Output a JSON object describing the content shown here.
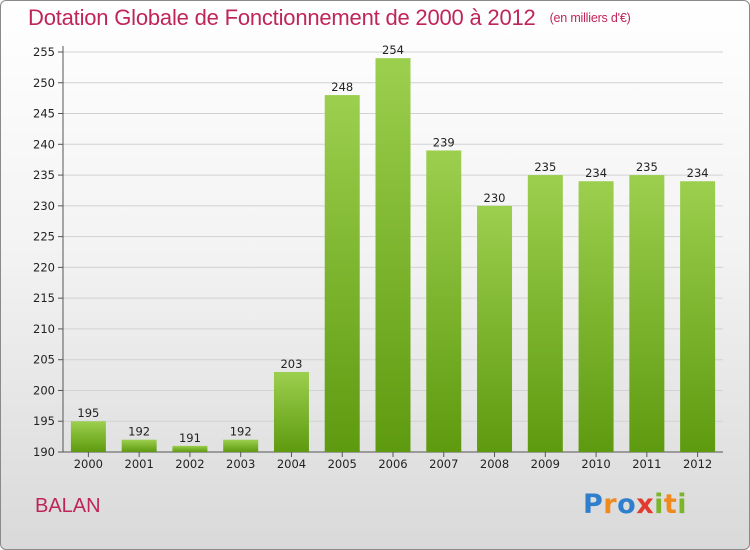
{
  "header": {
    "title": "Dotation Globale de Fonctionnement de 2000 à 2012",
    "subtitle": "(en milliers d'€)"
  },
  "footer": {
    "city": "BALAN",
    "logo": {
      "letters": [
        "P",
        "r",
        "o",
        "x",
        "i",
        "t",
        "i"
      ],
      "colors": [
        "#2f7fcc",
        "#f08a1c",
        "#2f7fcc",
        "#e23b2e",
        "#7bb62a",
        "#f08a1c",
        "#7bb62a"
      ]
    }
  },
  "colors": {
    "bar_light": "#9ccf4e",
    "bar_dark": "#5e9a10",
    "accent": "#c0255a"
  },
  "chart_data": {
    "type": "bar",
    "categories": [
      "2000",
      "2001",
      "2002",
      "2003",
      "2004",
      "2005",
      "2006",
      "2007",
      "2008",
      "2009",
      "2010",
      "2011",
      "2012"
    ],
    "values": [
      195,
      192,
      191,
      192,
      203,
      248,
      254,
      239,
      230,
      235,
      234,
      235,
      234
    ],
    "title": "Dotation Globale de Fonctionnement de 2000 à 2012",
    "ylim": [
      190,
      255
    ],
    "yticks": [
      190,
      195,
      200,
      205,
      210,
      215,
      220,
      225,
      230,
      235,
      240,
      245,
      250,
      255
    ],
    "grid": true,
    "legend": "none"
  }
}
